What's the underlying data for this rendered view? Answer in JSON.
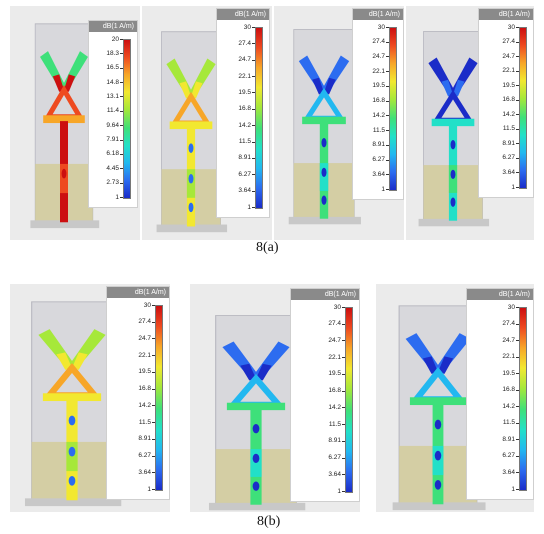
{
  "figure": {
    "caption_a": "8(a)",
    "caption_b": "8(b)"
  },
  "colormap": [
    "#1b2cc8",
    "#2c6cf0",
    "#22b8f0",
    "#22e0c8",
    "#3ee07a",
    "#a6e83a",
    "#f2e830",
    "#f7a628",
    "#ee4a20",
    "#cc0f10"
  ],
  "panels": [
    {
      "id": "a1",
      "legend_title": "dB(1 A/m)",
      "ticks": [
        "20",
        "18.3",
        "16.5",
        "14.8",
        "13.1",
        "11.4",
        "9.64",
        "7.91",
        "6.18",
        "4.45",
        "2.73",
        "1"
      ],
      "theme": "hot"
    },
    {
      "id": "a2",
      "legend_title": "dB(1 A/m)",
      "ticks": [
        "30",
        "27.4",
        "24.7",
        "22.1",
        "19.5",
        "16.8",
        "14.2",
        "11.5",
        "8.91",
        "6.27",
        "3.64",
        "1"
      ],
      "theme": "warm"
    },
    {
      "id": "a3",
      "legend_title": "dB(1 A/m)",
      "ticks": [
        "30",
        "27.4",
        "24.7",
        "22.1",
        "19.5",
        "16.8",
        "14.2",
        "11.5",
        "8.91",
        "6.27",
        "3.64",
        "1"
      ],
      "theme": "cool"
    },
    {
      "id": "a4",
      "legend_title": "dB(1 A/m)",
      "ticks": [
        "30",
        "27.4",
        "24.7",
        "22.1",
        "19.5",
        "16.8",
        "14.2",
        "11.5",
        "8.91",
        "6.27",
        "3.64",
        "1"
      ],
      "theme": "cold"
    },
    {
      "id": "b1",
      "legend_title": "dB(1 A/m)",
      "ticks": [
        "30",
        "27.4",
        "24.7",
        "22.1",
        "19.5",
        "16.8",
        "14.2",
        "11.5",
        "8.91",
        "6.27",
        "3.64",
        "1"
      ],
      "theme": "warm"
    },
    {
      "id": "b2",
      "legend_title": "dB(1 A/m)",
      "ticks": [
        "30",
        "27.4",
        "24.7",
        "22.1",
        "19.5",
        "16.8",
        "14.2",
        "11.5",
        "8.91",
        "6.27",
        "3.64",
        "1"
      ],
      "theme": "cool"
    },
    {
      "id": "b3",
      "legend_title": "dB(1 A/m)",
      "ticks": [
        "30",
        "27.4",
        "24.7",
        "22.1",
        "19.5",
        "16.8",
        "14.2",
        "11.5",
        "8.91",
        "6.27",
        "3.64",
        "1"
      ],
      "theme": "cool"
    }
  ]
}
